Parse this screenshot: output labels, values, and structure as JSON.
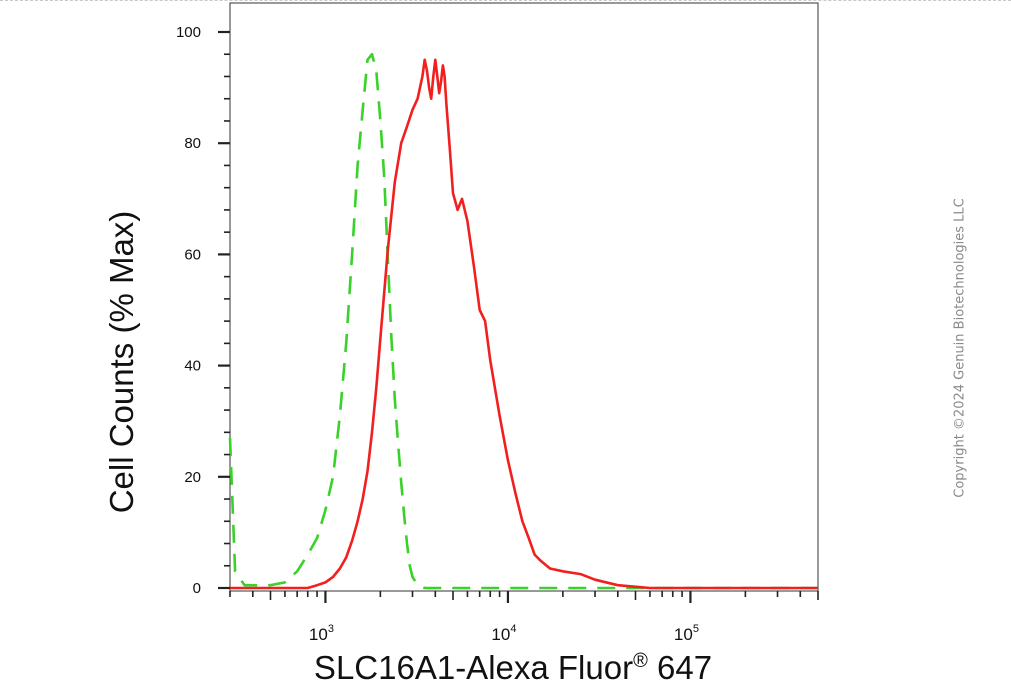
{
  "chart_data": {
    "type": "line",
    "xlabel": "SLC16A1-Alexa Fluor",
    "xlabel_superscript": "®",
    "xlabel_suffix": "647",
    "ylabel": "Cell Counts (% Max)",
    "xscale": "log",
    "xlim": [
      300,
      500000
    ],
    "ylim": [
      0,
      100
    ],
    "yticks": [
      0,
      20,
      40,
      60,
      80,
      100
    ],
    "ytick_labels": [
      "0",
      "20",
      "40",
      "60",
      "80",
      "100"
    ],
    "xticks": [
      1000,
      10000,
      100000
    ],
    "xtick_labels": [
      {
        "base": "10",
        "exp": "3"
      },
      {
        "base": "10",
        "exp": "4"
      },
      {
        "base": "10",
        "exp": "5"
      }
    ],
    "grid": false,
    "legend": "none",
    "series": [
      {
        "color": "#39d12a",
        "dash": true,
        "x": [
          300,
          320,
          360,
          420,
          500,
          600,
          700,
          800,
          900,
          1000,
          1100,
          1200,
          1300,
          1400,
          1500,
          1600,
          1700,
          1800,
          1900,
          2000,
          2100,
          2200,
          2300,
          2400,
          2500,
          2600,
          2700,
          2800,
          2900,
          3000,
          3200,
          3500,
          4000,
          5000,
          8000,
          20000,
          100000,
          500000
        ],
        "y": [
          27,
          3,
          0.5,
          0.5,
          0.5,
          1,
          3,
          6,
          9,
          14,
          20,
          31,
          44,
          60,
          76,
          86,
          95,
          96,
          93,
          84,
          74,
          59,
          45,
          34,
          26,
          19,
          13,
          8,
          4,
          2,
          0.5,
          0,
          0,
          0,
          0,
          0,
          0,
          0
        ]
      },
      {
        "color": "#f21f1f",
        "dash": false,
        "x": [
          300,
          500,
          700,
          800,
          900,
          1000,
          1100,
          1200,
          1300,
          1400,
          1500,
          1600,
          1700,
          1800,
          1900,
          2000,
          2200,
          2400,
          2600,
          2800,
          3000,
          3200,
          3400,
          3500,
          3600,
          3700,
          3800,
          3900,
          4000,
          4100,
          4200,
          4300,
          4400,
          4500,
          4600,
          4800,
          5000,
          5300,
          5600,
          6000,
          6500,
          7000,
          7500,
          8000,
          9000,
          10000,
          11000,
          12000,
          13000,
          14000,
          15000,
          17000,
          20000,
          25000,
          30000,
          40000,
          60000,
          100000,
          200000,
          500000
        ],
        "y": [
          0,
          0,
          0,
          0,
          0.5,
          1,
          2,
          3.5,
          5.5,
          8.5,
          12,
          16,
          21,
          28,
          36,
          45,
          61,
          73,
          80,
          83,
          86,
          88,
          92,
          95,
          93,
          90,
          88,
          92,
          95,
          92,
          89,
          91,
          94,
          92,
          87,
          79,
          71,
          68,
          70,
          66,
          58,
          50,
          48,
          41,
          31,
          23,
          17,
          12,
          9,
          6,
          5,
          3.5,
          3,
          2.5,
          1.5,
          0.5,
          0,
          0,
          0,
          0
        ]
      }
    ]
  },
  "watermark": "Copyright ©2024 Genuin Biotechnologies LLC"
}
